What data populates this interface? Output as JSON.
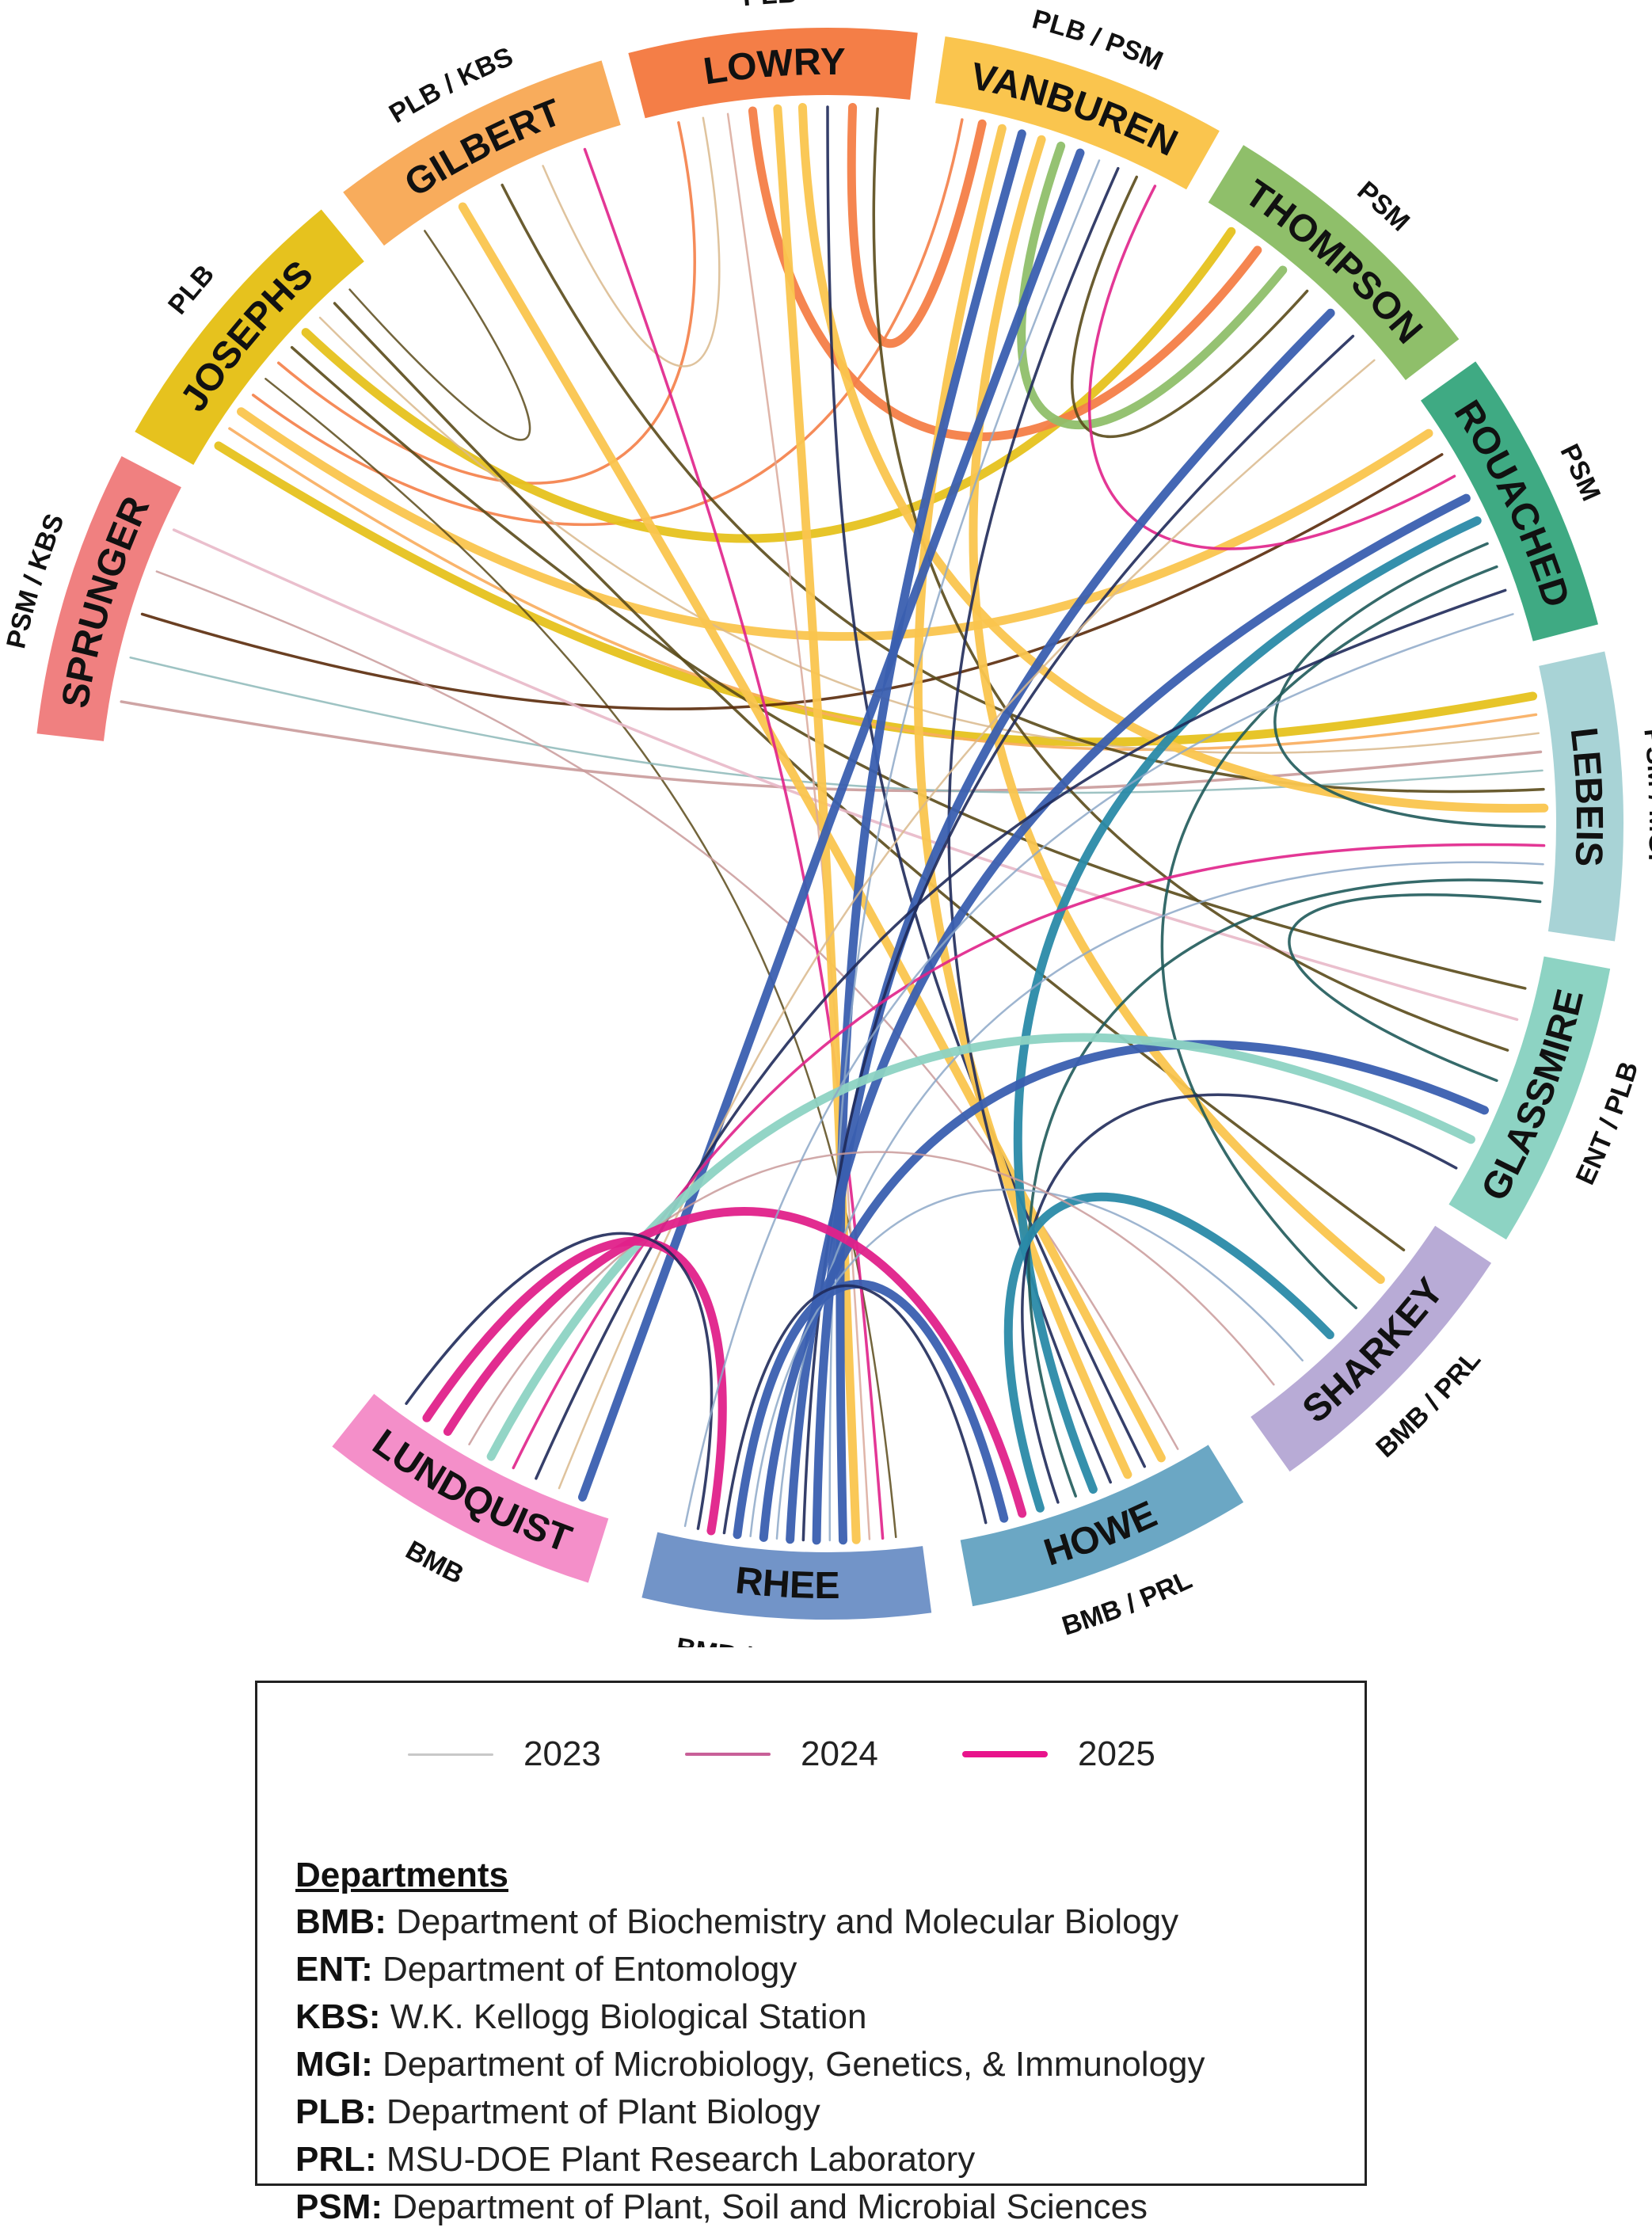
{
  "segments": [
    {
      "id": "sprunger",
      "name": "SPRUNGER",
      "dept": "PSM / KBS",
      "color": "#F08080"
    },
    {
      "id": "josephs",
      "name": "JOSEPHS",
      "dept": "PLB",
      "color": "#E6C21E"
    },
    {
      "id": "gilbert",
      "name": "GILBERT",
      "dept": "PLB / KBS",
      "color": "#F8AC5C"
    },
    {
      "id": "lowry",
      "name": "LOWRY",
      "dept": "PLB",
      "color": "#F47E47"
    },
    {
      "id": "vanburen",
      "name": "VANBUREN",
      "dept": "PLB / PSM",
      "color": "#FAC54E"
    },
    {
      "id": "thompson",
      "name": "THOMPSON",
      "dept": "PSM",
      "color": "#8FBF6A"
    },
    {
      "id": "rouached",
      "name": "ROUACHED",
      "dept": "PSM",
      "color": "#3FAA83"
    },
    {
      "id": "lebeis",
      "name": "LEBEIS",
      "dept": "PSM / MGI",
      "color": "#A8D3D6"
    },
    {
      "id": "glassmire",
      "name": "GLASSMIRE",
      "dept": "ENT / PLB",
      "color": "#8DD3C3"
    },
    {
      "id": "sharkey",
      "name": "SHARKEY",
      "dept": "BMB / PRL",
      "color": "#B8ABD6"
    },
    {
      "id": "howe",
      "name": "HOWE",
      "dept": "BMB / PRL",
      "color": "#6BA7C4"
    },
    {
      "id": "rhee",
      "name": "RHEE",
      "dept": "BMB / PLB / PSM",
      "color": "#7294C8"
    },
    {
      "id": "lundquist",
      "name": "LUNDQUIST",
      "dept": "BMB",
      "color": "#F48FC9"
    }
  ],
  "chords": [
    {
      "from": "josephs",
      "to": "lebeis",
      "year": "2025",
      "color": "#E6C21E"
    },
    {
      "from": "josephs",
      "to": "lebeis",
      "year": "2024",
      "color": "#F8AC5C"
    },
    {
      "from": "josephs",
      "to": "rouached",
      "year": "2025",
      "color": "#FAC54E"
    },
    {
      "from": "josephs",
      "to": "vanburen",
      "year": "2024",
      "color": "#F47E47"
    },
    {
      "from": "josephs",
      "to": "rhee",
      "year": "2023",
      "color": "#5A4A1A"
    },
    {
      "from": "josephs",
      "to": "lowry",
      "year": "2024",
      "color": "#F47E47"
    },
    {
      "from": "josephs",
      "to": "glassmire",
      "year": "2024",
      "color": "#5A4A1A"
    },
    {
      "from": "josephs",
      "to": "thompson",
      "year": "2025",
      "color": "#E6C21E"
    },
    {
      "from": "josephs",
      "to": "lebeis",
      "year": "2023",
      "color": "#D9B98C"
    },
    {
      "from": "josephs",
      "to": "sharkey",
      "year": "2024",
      "color": "#5A4A1A"
    },
    {
      "from": "josephs",
      "to": "gilbert",
      "year": "2023",
      "color": "#5A4A1A"
    },
    {
      "from": "sprunger",
      "to": "lebeis",
      "year": "2024",
      "color": "#C99A9A"
    },
    {
      "from": "sprunger",
      "to": "lebeis",
      "year": "2023",
      "color": "#8DB8B8"
    },
    {
      "from": "sprunger",
      "to": "rouached",
      "year": "2024",
      "color": "#5A2A0A"
    },
    {
      "from": "sprunger",
      "to": "howe",
      "year": "2023",
      "color": "#C99A9A"
    },
    {
      "from": "sprunger",
      "to": "glassmire",
      "year": "2024",
      "color": "#E8B8C8"
    },
    {
      "from": "gilbert",
      "to": "howe",
      "year": "2025",
      "color": "#FAC54E"
    },
    {
      "from": "gilbert",
      "to": "lebeis",
      "year": "2024",
      "color": "#5A4A1A"
    },
    {
      "from": "gilbert",
      "to": "lowry",
      "year": "2023",
      "color": "#D9B98C"
    },
    {
      "from": "gilbert",
      "to": "rhee",
      "year": "2024",
      "color": "#E0218A"
    },
    {
      "from": "lowry",
      "to": "rhee",
      "year": "2023",
      "color": "#D9A89A"
    },
    {
      "from": "lowry",
      "to": "thompson",
      "year": "2025",
      "color": "#F47E47"
    },
    {
      "from": "lowry",
      "to": "rhee",
      "year": "2025",
      "color": "#FAC54E"
    },
    {
      "from": "lowry",
      "to": "lebeis",
      "year": "2025",
      "color": "#FAC54E"
    },
    {
      "from": "lowry",
      "to": "howe",
      "year": "2024",
      "color": "#1F2A5A"
    },
    {
      "from": "lowry",
      "to": "vanburen",
      "year": "2025",
      "color": "#F47E47"
    },
    {
      "from": "lowry",
      "to": "glassmire",
      "year": "2024",
      "color": "#5A4A1A"
    },
    {
      "from": "vanburen",
      "to": "howe",
      "year": "2025",
      "color": "#FAC54E"
    },
    {
      "from": "vanburen",
      "to": "rhee",
      "year": "2025",
      "color": "#3A5FB0"
    },
    {
      "from": "vanburen",
      "to": "sharkey",
      "year": "2025",
      "color": "#FAC54E"
    },
    {
      "from": "vanburen",
      "to": "thompson",
      "year": "2025",
      "color": "#8FBF6A"
    },
    {
      "from": "vanburen",
      "to": "lundquist",
      "year": "2025",
      "color": "#3A5FB0"
    },
    {
      "from": "vanburen",
      "to": "rhee",
      "year": "2023",
      "color": "#8DA8C8"
    },
    {
      "from": "vanburen",
      "to": "howe",
      "year": "2024",
      "color": "#1F2A5A"
    },
    {
      "from": "vanburen",
      "to": "thompson",
      "year": "2024",
      "color": "#5A4A1A"
    },
    {
      "from": "vanburen",
      "to": "rouached",
      "year": "2024",
      "color": "#E0218A"
    },
    {
      "from": "thompson",
      "to": "rhee",
      "year": "2025",
      "color": "#3A5FB0"
    },
    {
      "from": "thompson",
      "to": "rhee",
      "year": "2024",
      "color": "#1F2A5A"
    },
    {
      "from": "thompson",
      "to": "lundquist",
      "year": "2023",
      "color": "#D9B98C"
    },
    {
      "from": "rouached",
      "to": "rhee",
      "year": "2025",
      "color": "#3A5FB0"
    },
    {
      "from": "rouached",
      "to": "howe",
      "year": "2025",
      "color": "#2A8AA8"
    },
    {
      "from": "rouached",
      "to": "lebeis",
      "year": "2024",
      "color": "#1F5A5A"
    },
    {
      "from": "rouached",
      "to": "sharkey",
      "year": "2024",
      "color": "#1F5A5A"
    },
    {
      "from": "rouached",
      "to": "lundquist",
      "year": "2024",
      "color": "#1F2A5A"
    },
    {
      "from": "lebeis",
      "to": "lundquist",
      "year": "2024",
      "color": "#E0218A"
    },
    {
      "from": "lebeis",
      "to": "rhee",
      "year": "2023",
      "color": "#8DA8C8"
    },
    {
      "from": "lebeis",
      "to": "howe",
      "year": "2024",
      "color": "#1F5A5A"
    },
    {
      "from": "lebeis",
      "to": "glassmire",
      "year": "2024",
      "color": "#1F5A5A"
    },
    {
      "from": "glassmire",
      "to": "rhee",
      "year": "2025",
      "color": "#3A5FB0"
    },
    {
      "from": "glassmire",
      "to": "lundquist",
      "year": "2025",
      "color": "#8DD3C3"
    },
    {
      "from": "glassmire",
      "to": "howe",
      "year": "2024",
      "color": "#1F2A5A"
    },
    {
      "from": "sharkey",
      "to": "howe",
      "year": "2025",
      "color": "#2A8AA8"
    },
    {
      "from": "sharkey",
      "to": "rhee",
      "year": "2023",
      "color": "#8DA8C8"
    },
    {
      "from": "sharkey",
      "to": "lundquist",
      "year": "2023",
      "color": "#C99A9A"
    },
    {
      "from": "howe",
      "to": "lundquist",
      "year": "2025",
      "color": "#E0218A"
    },
    {
      "from": "howe",
      "to": "rhee",
      "year": "2025",
      "color": "#3A5FB0"
    },
    {
      "from": "howe",
      "to": "rhee",
      "year": "2024",
      "color": "#1F2A5A"
    },
    {
      "from": "rhee",
      "to": "lundquist",
      "year": "2025",
      "color": "#E0218A"
    },
    {
      "from": "rhee",
      "to": "lundquist",
      "year": "2024",
      "color": "#1F2A5A"
    },
    {
      "from": "rhee",
      "to": "rouached",
      "year": "2023",
      "color": "#8DA8C8"
    }
  ],
  "year_styles": {
    "2023": {
      "width": 2.5,
      "opacity": 0.85
    },
    "2024": {
      "width": 3.5,
      "opacity": 0.9
    },
    "2025": {
      "width": 11,
      "opacity": 0.95
    }
  },
  "legend": {
    "years": [
      {
        "label": "2023",
        "color": "#C8C8C8",
        "thickness": 3
      },
      {
        "label": "2024",
        "color": "#C86098",
        "thickness": 4
      },
      {
        "label": "2025",
        "color": "#E8148C",
        "thickness": 8
      }
    ],
    "departments_title": "Departments",
    "departments": [
      {
        "abbr": "BMB:",
        "name": "Department of Biochemistry and Molecular Biology"
      },
      {
        "abbr": "ENT:",
        "name": "Department of Entomology"
      },
      {
        "abbr": "KBS:",
        "name": "W.K. Kellogg Biological Station"
      },
      {
        "abbr": "MGI:",
        "name": "Department of Microbiology, Genetics, & Immunology"
      },
      {
        "abbr": "PLB:",
        "name": "Department of Plant Biology"
      },
      {
        "abbr": "PRL:",
        "name": "MSU-DOE Plant Research Laboratory"
      },
      {
        "abbr": "PSM:",
        "name": "Department of Plant, Soil and Microbial Sciences"
      }
    ]
  }
}
